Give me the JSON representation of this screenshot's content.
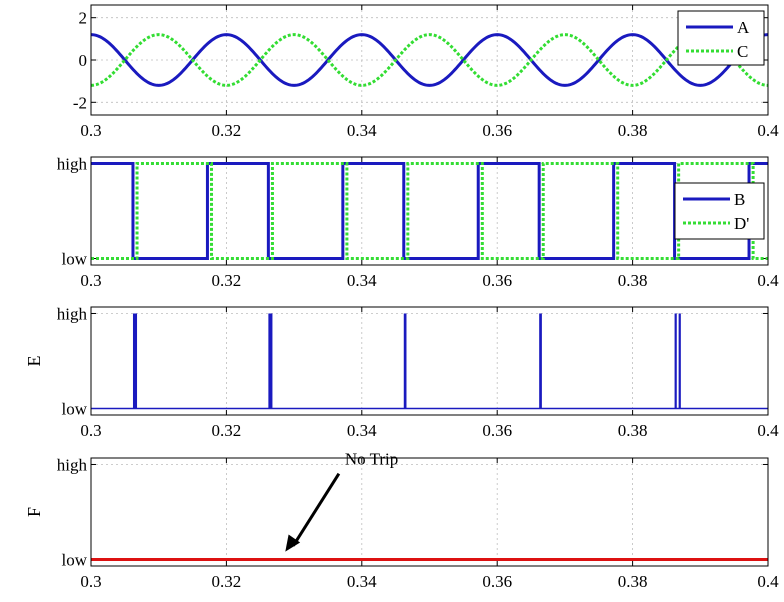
{
  "chart_data": [
    {
      "type": "line",
      "xlim": [
        0.3,
        0.4
      ],
      "ylim": [
        -2.6,
        2.6
      ],
      "x_ticks": [
        "0.3",
        "0.32",
        "0.34",
        "0.36",
        "0.38",
        "0.4"
      ],
      "y_ticks": [
        {
          "value": 2,
          "label": "2"
        },
        {
          "value": 0,
          "label": "0"
        },
        {
          "value": -2,
          "label": "-2"
        }
      ],
      "ylabel": "",
      "grid": true,
      "legend": "top-right",
      "series": [
        {
          "name": "A",
          "color": "#1a1abf",
          "style": "solid",
          "kind": "sine",
          "amplitude": 1.2,
          "period": 0.02,
          "phase_peak": 0.3,
          "offset": 0
        },
        {
          "name": "C",
          "color": "#33dd33",
          "style": "dotted",
          "kind": "sine",
          "amplitude": 1.2,
          "period": 0.02,
          "phase_peak": 0.31,
          "offset": 0
        }
      ]
    },
    {
      "type": "line",
      "xlim": [
        0.3,
        0.4
      ],
      "ylim": [
        0,
        1
      ],
      "x_ticks": [
        "0.3",
        "0.32",
        "0.34",
        "0.36",
        "0.38",
        "0.4"
      ],
      "y_ticks": [
        {
          "value": 1,
          "label": "high"
        },
        {
          "value": 0,
          "label": "low"
        }
      ],
      "ylabel": "",
      "grid": true,
      "legend": "right",
      "series": [
        {
          "name": "B",
          "color": "#1a1abf",
          "style": "solid",
          "kind": "step",
          "x": [
            0.3,
            0.3062,
            0.3062,
            0.3172,
            0.3172,
            0.3262,
            0.3262,
            0.3372,
            0.3372,
            0.3462,
            0.3462,
            0.3572,
            0.3572,
            0.3662,
            0.3662,
            0.3772,
            0.3772,
            0.3862,
            0.3862,
            0.3972,
            0.3972,
            0.4
          ],
          "y": [
            1,
            1,
            0,
            0,
            1,
            1,
            0,
            0,
            1,
            1,
            0,
            0,
            1,
            1,
            0,
            0,
            1,
            1,
            0,
            0,
            1,
            1
          ]
        },
        {
          "name": "D'",
          "color": "#33dd33",
          "style": "dotted",
          "kind": "step",
          "x": [
            0.3,
            0.3068,
            0.3068,
            0.3178,
            0.3178,
            0.3268,
            0.3268,
            0.3378,
            0.3378,
            0.3468,
            0.3468,
            0.3578,
            0.3578,
            0.3668,
            0.3668,
            0.3778,
            0.3778,
            0.3868,
            0.3868,
            0.3978,
            0.3978,
            0.4
          ],
          "y": [
            0,
            0,
            1,
            1,
            0,
            0,
            1,
            1,
            0,
            0,
            1,
            1,
            0,
            0,
            1,
            1,
            0,
            0,
            1,
            1,
            0,
            0
          ]
        }
      ]
    },
    {
      "type": "line",
      "xlim": [
        0.3,
        0.4
      ],
      "ylim": [
        0,
        1
      ],
      "x_ticks": [
        "0.3",
        "0.32",
        "0.34",
        "0.36",
        "0.38",
        "0.4"
      ],
      "y_ticks": [
        {
          "value": 1,
          "label": "high"
        },
        {
          "value": 0,
          "label": "low"
        }
      ],
      "ylabel": "E",
      "grid": true,
      "legend": "none",
      "series": [
        {
          "color": "#1a1abf",
          "style": "solid",
          "kind": "pulses",
          "pulses": [
            [
              0.3062,
              0.3068
            ],
            [
              0.3262,
              0.3268
            ],
            [
              0.3462,
              0.3466
            ],
            [
              0.3662,
              0.3666
            ],
            [
              0.3862,
              0.3864
            ],
            [
              0.3868,
              0.387
            ]
          ]
        }
      ]
    },
    {
      "type": "line",
      "xlim": [
        0.3,
        0.4
      ],
      "ylim": [
        0,
        1
      ],
      "x_ticks": [
        "0.3",
        "0.32",
        "0.34",
        "0.36",
        "0.38",
        "0.4"
      ],
      "y_ticks": [
        {
          "value": 1,
          "label": "high"
        },
        {
          "value": 0,
          "label": "low"
        }
      ],
      "ylabel": "F",
      "grid": true,
      "legend": "none",
      "series": [
        {
          "color": "#dd1111",
          "style": "solid",
          "kind": "step",
          "x": [
            0.3,
            0.4
          ],
          "y": [
            0,
            0
          ]
        }
      ],
      "annotation": {
        "text": "No Trip",
        "text_x": 0.3375,
        "text_y": 1.05,
        "arrow_x": 0.3287,
        "arrow_y": 0.03
      }
    }
  ]
}
